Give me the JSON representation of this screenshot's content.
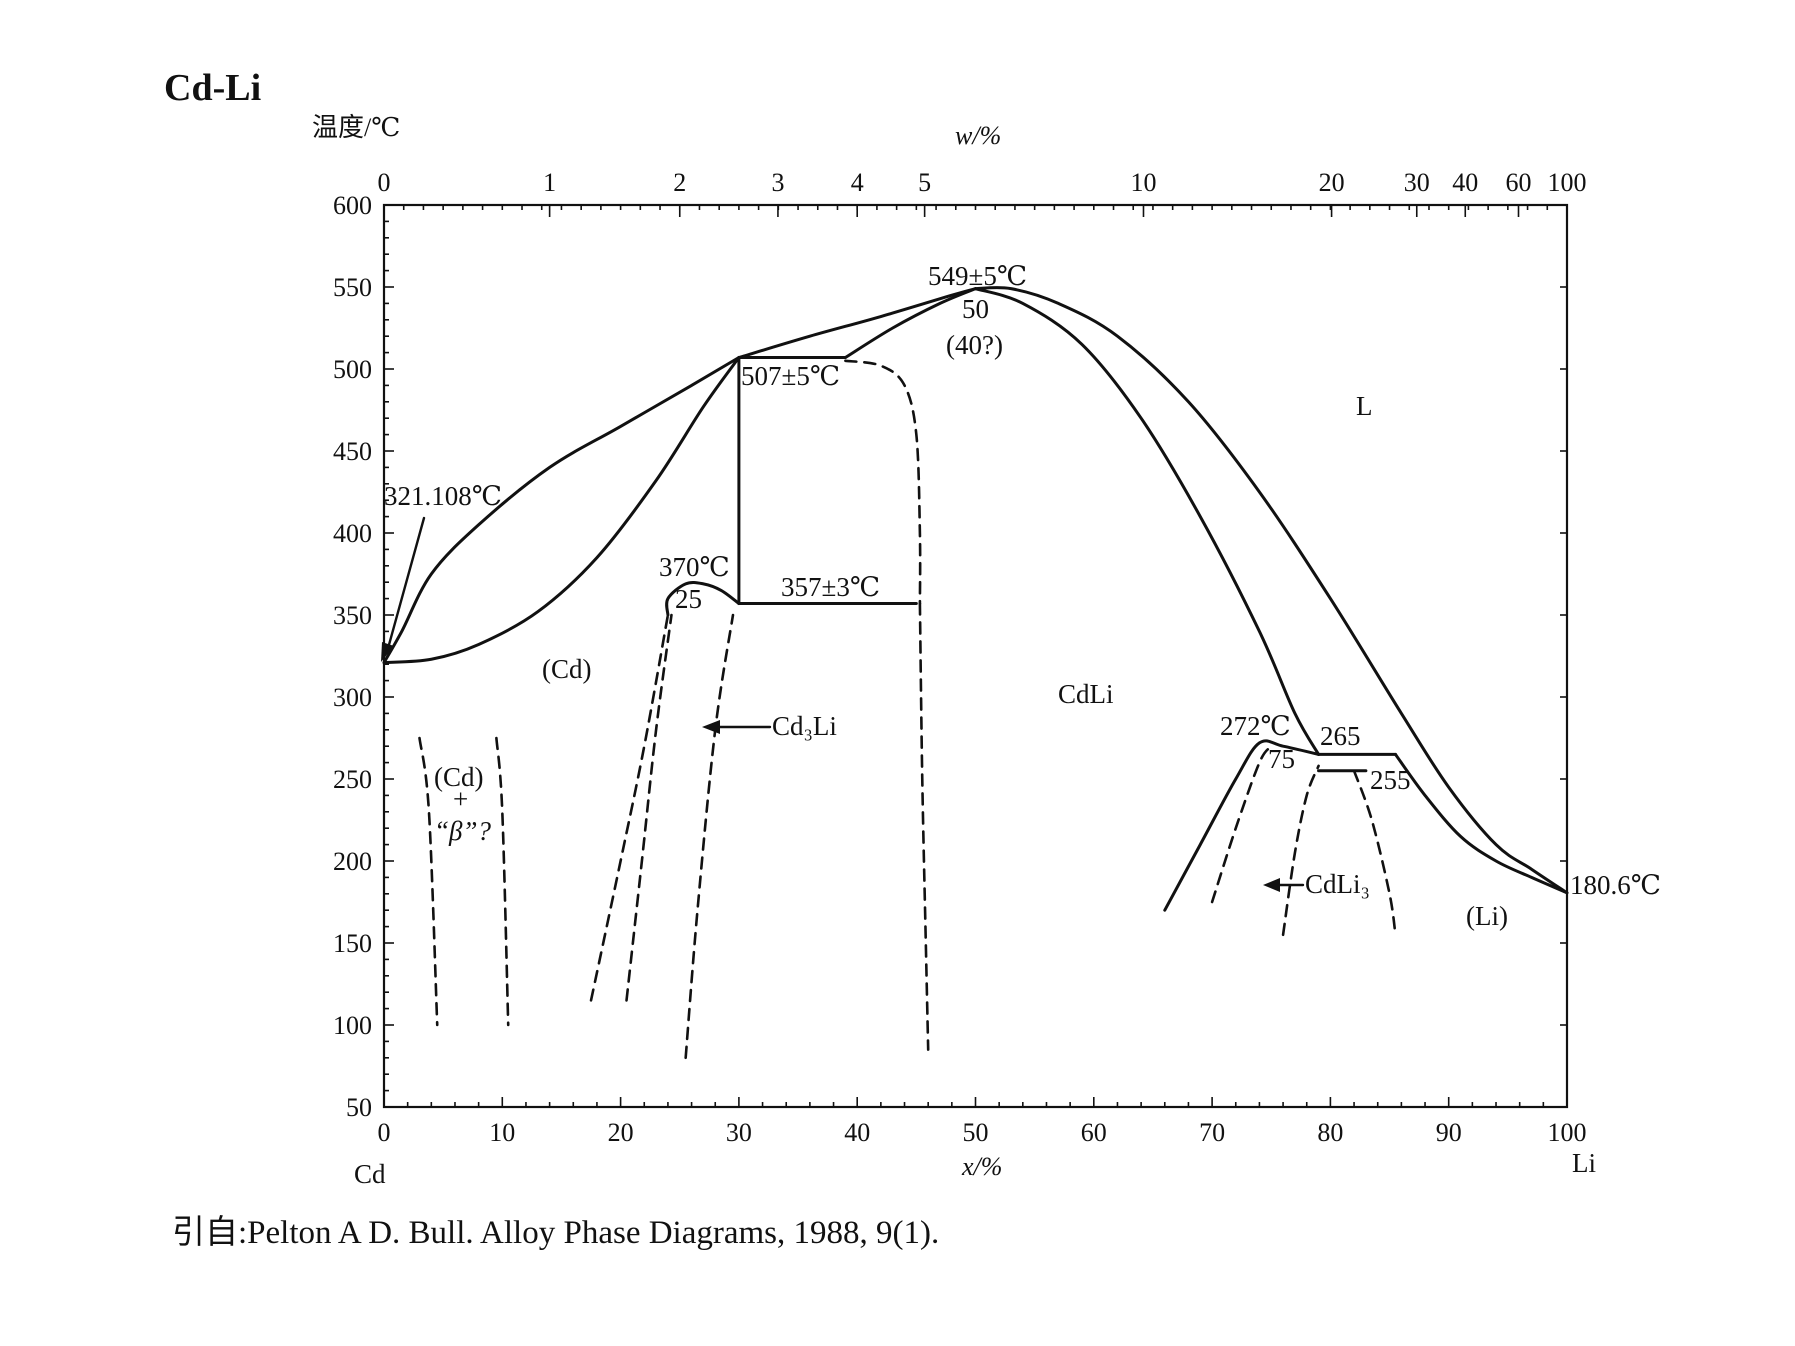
{
  "figure": {
    "title": "Cd-Li",
    "source": "引自:Pelton A D. Bull. Alloy Phase Diagrams, 1988, 9(1)."
  },
  "chart_data": {
    "type": "phase-diagram",
    "title": "Cd-Li",
    "ylabel": "温度/℃",
    "xlabel": "x/%",
    "x2label": "w/%",
    "xlim": [
      0,
      100
    ],
    "ylim": [
      50,
      600
    ],
    "x_ticks": [
      0,
      10,
      20,
      30,
      40,
      50,
      60,
      70,
      80,
      90,
      100
    ],
    "y_ticks": [
      50,
      100,
      150,
      200,
      250,
      300,
      350,
      400,
      450,
      500,
      550,
      600
    ],
    "top_ticks": [
      {
        "label": "0",
        "x": 0
      },
      {
        "label": "1",
        "x": 14.0
      },
      {
        "label": "2",
        "x": 25.0
      },
      {
        "label": "3",
        "x": 33.3
      },
      {
        "label": "4",
        "x": 40.0
      },
      {
        "label": "5",
        "x": 45.7
      },
      {
        "label": "10",
        "x": 64.2
      },
      {
        "label": "20",
        "x": 80.1
      },
      {
        "label": "30",
        "x": 87.3
      },
      {
        "label": "40",
        "x": 91.4
      },
      {
        "label": "60",
        "x": 95.9
      },
      {
        "label": "100",
        "x": 100
      }
    ],
    "endpoints": {
      "left": "Cd",
      "right": "Li"
    },
    "solid_curves": [
      {
        "name": "liquidus-left",
        "points": [
          [
            0,
            321
          ],
          [
            1.5,
            340
          ],
          [
            4,
            375
          ],
          [
            8,
            405
          ],
          [
            14,
            440
          ],
          [
            20,
            465
          ],
          [
            26,
            490
          ],
          [
            30,
            507
          ]
        ]
      },
      {
        "name": "liquidus-cdli-left",
        "points": [
          [
            30,
            507
          ],
          [
            36,
            520
          ],
          [
            42,
            532
          ],
          [
            48,
            545
          ],
          [
            50,
            549
          ]
        ]
      },
      {
        "name": "cd-solidus",
        "points": [
          [
            0,
            321
          ],
          [
            4,
            323
          ],
          [
            8,
            332
          ],
          [
            13,
            352
          ],
          [
            18,
            385
          ],
          [
            23,
            432
          ],
          [
            27,
            477
          ],
          [
            30,
            507
          ]
        ]
      },
      {
        "name": "cd3li-peritectic",
        "points": [
          [
            30,
            507
          ],
          [
            30,
            357
          ]
        ]
      },
      {
        "name": "liquidus-cdli-top",
        "points": [
          [
            39,
            507
          ],
          [
            43,
            525
          ],
          [
            47,
            540
          ],
          [
            50,
            549
          ]
        ]
      },
      {
        "name": "peritectic-507",
        "points": [
          [
            30,
            507
          ],
          [
            39,
            507
          ]
        ]
      },
      {
        "name": "eutectoid-357",
        "points": [
          [
            30,
            357
          ],
          [
            45,
            357
          ]
        ]
      },
      {
        "name": "liquidus-right",
        "points": [
          [
            50,
            549
          ],
          [
            53,
            549
          ],
          [
            57,
            540
          ],
          [
            62,
            520
          ],
          [
            68,
            480
          ],
          [
            74,
            425
          ],
          [
            80,
            360
          ],
          [
            86,
            290
          ],
          [
            90,
            245
          ],
          [
            94,
            210
          ],
          [
            97,
            195
          ],
          [
            100,
            180.6
          ]
        ]
      },
      {
        "name": "cdli-solidus-right",
        "points": [
          [
            50,
            549
          ],
          [
            54,
            540
          ],
          [
            59,
            515
          ],
          [
            64,
            470
          ],
          [
            69,
            410
          ],
          [
            74,
            340
          ],
          [
            77,
            290
          ],
          [
            79,
            265
          ]
        ]
      },
      {
        "name": "li-solidus",
        "points": [
          [
            85.5,
            265
          ],
          [
            88,
            240
          ],
          [
            91,
            215
          ],
          [
            94,
            200
          ],
          [
            97,
            190
          ],
          [
            100,
            180.6
          ]
        ]
      },
      {
        "name": "cd3li-dome-left",
        "points": [
          [
            24,
            350
          ],
          [
            24,
            360
          ],
          [
            25.5,
            369
          ],
          [
            27,
            369
          ],
          [
            28.5,
            365
          ],
          [
            30,
            357
          ]
        ]
      },
      {
        "name": "cdli3-dome",
        "points": [
          [
            66,
            170
          ],
          [
            69,
            210
          ],
          [
            72,
            250
          ],
          [
            74,
            272
          ],
          [
            76,
            270
          ],
          [
            79,
            265
          ]
        ]
      },
      {
        "name": "cdli3-right",
        "points": [
          [
            79,
            265
          ],
          [
            85.5,
            265
          ]
        ]
      },
      {
        "name": "cdli3-eutectoid",
        "points": [
          [
            79,
            255
          ],
          [
            83,
            255
          ]
        ]
      }
    ],
    "dashed_curves": [
      {
        "points": [
          [
            17.5,
            115
          ],
          [
            20,
            200
          ],
          [
            22,
            270
          ],
          [
            24,
            350
          ]
        ]
      },
      {
        "points": [
          [
            20.5,
            115
          ],
          [
            21.8,
            200
          ],
          [
            23,
            280
          ],
          [
            24.3,
            350
          ]
        ]
      },
      {
        "points": [
          [
            25.5,
            80
          ],
          [
            26.5,
            170
          ],
          [
            28,
            280
          ],
          [
            29.5,
            350
          ]
        ]
      },
      {
        "points": [
          [
            39,
            505
          ],
          [
            42,
            502
          ],
          [
            44,
            490
          ],
          [
            45,
            460
          ],
          [
            45.3,
            400
          ],
          [
            45.3,
            357
          ]
        ]
      },
      {
        "points": [
          [
            45.3,
            357
          ],
          [
            45.5,
            250
          ],
          [
            45.8,
            150
          ],
          [
            46,
            85
          ]
        ]
      },
      {
        "points": [
          [
            3,
            275
          ],
          [
            3.8,
            230
          ],
          [
            4.5,
            100
          ]
        ]
      },
      {
        "points": [
          [
            9.5,
            275
          ],
          [
            10,
            230
          ],
          [
            10.5,
            100
          ]
        ]
      },
      {
        "points": [
          [
            70,
            175
          ],
          [
            72,
            220
          ],
          [
            74,
            260
          ],
          [
            75,
            270
          ]
        ]
      },
      {
        "points": [
          [
            76,
            155
          ],
          [
            77,
            205
          ],
          [
            78,
            240
          ],
          [
            79,
            258
          ]
        ]
      },
      {
        "points": [
          [
            82,
            255
          ],
          [
            83.5,
            225
          ],
          [
            85,
            180
          ],
          [
            85.5,
            155
          ]
        ]
      }
    ],
    "annotations": {
      "t549": "549±5℃",
      "c50": "50",
      "c40": "(40?)",
      "t507": "507±5℃",
      "t321": "321.108℃",
      "t370": "370℃",
      "c25": "25",
      "t357": "357±3℃",
      "cd": "(Cd)",
      "cd3li": "Cd₃Li",
      "cdli": "CdLi",
      "liq": "L",
      "t272": "272℃",
      "c75": "75",
      "c265": "265",
      "c255": "255",
      "cdli3": "CdLi₃",
      "t1806": "180.6℃",
      "li": "(Li)",
      "twophase_a": "(Cd)",
      "twophase_b": "+",
      "twophase_c": "“β”?"
    }
  }
}
